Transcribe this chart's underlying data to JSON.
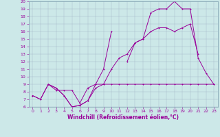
{
  "x": [
    0,
    1,
    2,
    3,
    4,
    5,
    6,
    7,
    8,
    9,
    10,
    11,
    12,
    13,
    14,
    15,
    16,
    17,
    18,
    19,
    20,
    21,
    22,
    23
  ],
  "line1_y": [
    7.5,
    7.0,
    9.0,
    8.5,
    7.5,
    6.0,
    6.2,
    6.8,
    8.5,
    9.0,
    11.0,
    12.5,
    13.0,
    14.5,
    15.0,
    16.0,
    16.5,
    16.5,
    16.0,
    16.5,
    17.0,
    13.0,
    null,
    null
  ],
  "line2_y": [
    7.5,
    7.0,
    9.0,
    8.5,
    7.5,
    6.0,
    6.2,
    6.8,
    9.0,
    11.0,
    16.0,
    null,
    12.0,
    14.5,
    15.0,
    18.5,
    19.0,
    19.0,
    20.0,
    19.0,
    19.0,
    12.5,
    10.5,
    9.0
  ],
  "line3_y": [
    7.5,
    null,
    9.0,
    8.2,
    8.2,
    8.2,
    6.5,
    8.5,
    9.0,
    9.0,
    9.0,
    9.0,
    9.0,
    9.0,
    9.0,
    9.0,
    9.0,
    9.0,
    9.0,
    9.0,
    9.0,
    9.0,
    9.0,
    9.0
  ],
  "xlim": [
    -0.5,
    23.5
  ],
  "ylim": [
    6,
    20
  ],
  "xticks": [
    0,
    1,
    2,
    3,
    4,
    5,
    6,
    7,
    8,
    9,
    10,
    11,
    12,
    13,
    14,
    15,
    16,
    17,
    18,
    19,
    20,
    21,
    22,
    23
  ],
  "yticks": [
    6,
    7,
    8,
    9,
    10,
    11,
    12,
    13,
    14,
    15,
    16,
    17,
    18,
    19,
    20
  ],
  "xlabel": "Windchill (Refroidissement éolien,°C)",
  "bg_color": "#cce8e8",
  "grid_color": "#aabbcc",
  "line_color": "#990099",
  "tick_fontsize": 4.5,
  "xlabel_fontsize": 5.5,
  "lw": 0.7,
  "ms": 2.0,
  "mew": 0.7
}
